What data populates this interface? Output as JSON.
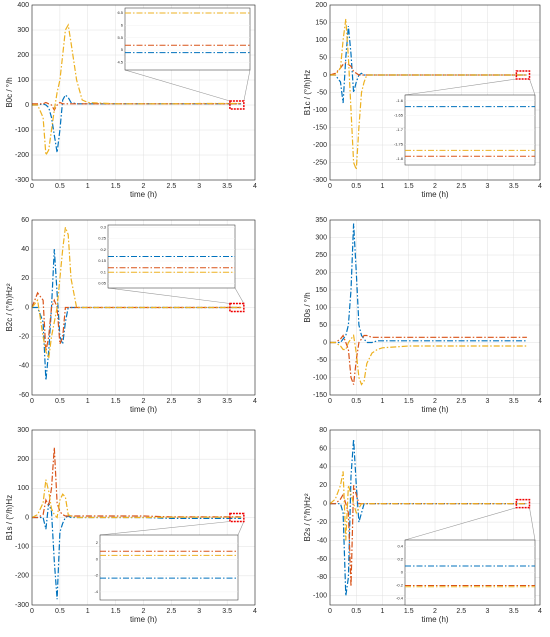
{
  "chart_data": [
    {
      "type": "line",
      "ylabel": "B0c / °/h",
      "xlabel": "time (h)",
      "x": [
        0,
        0.1,
        0.2,
        0.25,
        0.3,
        0.35,
        0.4,
        0.45,
        0.5,
        0.55,
        0.6,
        0.65,
        0.7,
        0.8,
        0.9,
        1,
        1.5,
        2,
        2.5,
        3,
        3.5,
        3.75
      ],
      "xlim": [
        0,
        4
      ],
      "xticks": [
        0,
        0.5,
        1,
        1.5,
        2,
        2.5,
        3,
        3.5,
        4
      ],
      "ylim": [
        -300,
        400
      ],
      "yticks": [
        -300,
        -200,
        -100,
        0,
        100,
        200,
        300,
        400
      ],
      "grid": true,
      "series": [
        {
          "color": "#0072bd",
          "values": [
            0,
            0,
            5,
            0,
            -10,
            -50,
            -120,
            -190,
            -100,
            20,
            40,
            30,
            10,
            5,
            5,
            5,
            5,
            5,
            5,
            5,
            5,
            5
          ]
        },
        {
          "color": "#d95319",
          "values": [
            5,
            5,
            5,
            10,
            5,
            0,
            -20,
            0,
            10,
            5,
            5,
            5,
            5,
            5,
            5,
            5,
            5,
            5,
            5,
            5,
            5,
            5
          ]
        },
        {
          "color": "#edb120",
          "values": [
            0,
            0,
            -50,
            -200,
            -180,
            -100,
            -20,
            50,
            100,
            200,
            300,
            320,
            250,
            100,
            20,
            10,
            5,
            5,
            5,
            6,
            6,
            6
          ]
        }
      ],
      "inset": {
        "ylim": [
          4.2,
          6.7
        ],
        "yticks": [
          4.5,
          5,
          5.5,
          6,
          6.5
        ],
        "values": [
          4.9,
          5.2,
          6.5
        ]
      }
    },
    {
      "type": "line",
      "ylabel": "B1c / (°/h)Hz",
      "xlabel": "time (h)",
      "x": [
        0,
        0.1,
        0.2,
        0.25,
        0.3,
        0.35,
        0.4,
        0.45,
        0.5,
        0.55,
        0.6,
        0.65,
        0.7,
        0.8,
        0.9,
        1,
        1.5,
        2,
        2.5,
        3,
        3.5,
        3.75
      ],
      "xlim": [
        0,
        4
      ],
      "xticks": [
        0,
        0.5,
        1,
        1.5,
        2,
        2.5,
        3,
        3.5,
        4
      ],
      "ylim": [
        -300,
        200
      ],
      "yticks": [
        -300,
        -250,
        -200,
        -150,
        -100,
        -50,
        0,
        50,
        100,
        150,
        200
      ],
      "grid": true,
      "series": [
        {
          "color": "#0072bd",
          "values": [
            0,
            0,
            -20,
            -80,
            50,
            140,
            60,
            -50,
            -20,
            0,
            5,
            0,
            0,
            0,
            0,
            0,
            0,
            0,
            0,
            0,
            0,
            0
          ]
        },
        {
          "color": "#d95319",
          "values": [
            0,
            5,
            20,
            30,
            35,
            30,
            25,
            10,
            5,
            0,
            0,
            0,
            0,
            0,
            0,
            0,
            0,
            0,
            0,
            0,
            0,
            0
          ]
        },
        {
          "color": "#edb120",
          "values": [
            0,
            0,
            20,
            100,
            160,
            50,
            -100,
            -250,
            -270,
            -150,
            -50,
            -20,
            0,
            0,
            0,
            0,
            0,
            0,
            0,
            0,
            0,
            0
          ]
        }
      ],
      "inset": {
        "ylim": [
          -1.82,
          -1.58
        ],
        "yticks": [
          -1.8,
          -1.75,
          -1.7,
          -1.65,
          -1.6
        ],
        "values": [
          -1.62,
          -1.79,
          -1.77
        ]
      }
    },
    {
      "type": "line",
      "ylabel": "B2c / (°/h)Hz²",
      "xlabel": "time (h)",
      "x": [
        0,
        0.1,
        0.2,
        0.25,
        0.3,
        0.35,
        0.4,
        0.45,
        0.5,
        0.55,
        0.6,
        0.65,
        0.7,
        0.8,
        0.9,
        1,
        1.5,
        2,
        2.5,
        3,
        3.5,
        3.75
      ],
      "xlim": [
        0,
        4
      ],
      "xticks": [
        0,
        0.5,
        1,
        1.5,
        2,
        2.5,
        3,
        3.5,
        4
      ],
      "ylim": [
        -60,
        60
      ],
      "yticks": [
        -60,
        -40,
        -20,
        0,
        20,
        40,
        60
      ],
      "grid": true,
      "series": [
        {
          "color": "#0072bd",
          "values": [
            0,
            0,
            -10,
            -50,
            -30,
            0,
            40,
            10,
            -20,
            -25,
            -10,
            0,
            0,
            0,
            0,
            0,
            0,
            0,
            0,
            0,
            0,
            0
          ]
        },
        {
          "color": "#d95319",
          "values": [
            0,
            10,
            5,
            -30,
            -20,
            0,
            5,
            0,
            -25,
            -20,
            0,
            0,
            0,
            0,
            0,
            0,
            0,
            0,
            0,
            0,
            0,
            0
          ]
        },
        {
          "color": "#edb120",
          "values": [
            0,
            5,
            -20,
            -30,
            -35,
            -20,
            -10,
            0,
            20,
            40,
            55,
            50,
            20,
            0,
            0,
            0,
            0,
            0,
            0,
            0,
            0,
            0
          ]
        }
      ],
      "inset": {
        "ylim": [
          0.03,
          0.31
        ],
        "yticks": [
          0.05,
          0.1,
          0.15,
          0.2,
          0.25,
          0.3
        ],
        "values": [
          0.17,
          0.12,
          0.1
        ]
      }
    },
    {
      "type": "line",
      "ylabel": "B0s / °/h",
      "xlabel": "time (h)",
      "x": [
        0,
        0.1,
        0.2,
        0.25,
        0.3,
        0.35,
        0.4,
        0.45,
        0.5,
        0.55,
        0.6,
        0.65,
        0.7,
        0.8,
        0.9,
        1,
        1.5,
        2,
        2.5,
        3,
        3.5,
        3.75
      ],
      "xlim": [
        0,
        4
      ],
      "xticks": [
        0,
        0.5,
        1,
        1.5,
        2,
        2.5,
        3,
        3.5,
        4
      ],
      "ylim": [
        -150,
        350
      ],
      "yticks": [
        -150,
        -100,
        -50,
        0,
        50,
        100,
        150,
        200,
        250,
        300,
        350
      ],
      "grid": true,
      "series": [
        {
          "color": "#0072bd",
          "values": [
            0,
            0,
            0,
            10,
            20,
            50,
            150,
            340,
            200,
            50,
            20,
            10,
            0,
            0,
            5,
            5,
            5,
            5,
            5,
            5,
            5,
            5
          ]
        },
        {
          "color": "#d95319",
          "values": [
            0,
            0,
            10,
            20,
            0,
            -20,
            -100,
            -120,
            -50,
            0,
            10,
            20,
            20,
            15,
            15,
            15,
            15,
            15,
            15,
            15,
            15,
            15
          ]
        },
        {
          "color": "#edb120",
          "values": [
            0,
            0,
            -10,
            -20,
            -20,
            0,
            10,
            20,
            -30,
            -100,
            -120,
            -110,
            -60,
            -30,
            -20,
            -15,
            -10,
            -10,
            -10,
            -10,
            -10,
            -10
          ]
        }
      ]
    },
    {
      "type": "line",
      "ylabel": "B1s / (°/h)Hz",
      "xlabel": "time (h)",
      "x": [
        0,
        0.1,
        0.2,
        0.25,
        0.3,
        0.35,
        0.4,
        0.45,
        0.5,
        0.55,
        0.6,
        0.65,
        0.7,
        0.8,
        0.9,
        1,
        1.5,
        2,
        2.5,
        3,
        3.5,
        3.75
      ],
      "xlim": [
        0,
        4
      ],
      "xticks": [
        0,
        0.5,
        1,
        1.5,
        2,
        2.5,
        3,
        3.5,
        4
      ],
      "ylim": [
        -300,
        300
      ],
      "yticks": [
        -300,
        -200,
        -100,
        0,
        100,
        200,
        300
      ],
      "grid": true,
      "series": [
        {
          "color": "#0072bd",
          "values": [
            0,
            0,
            0,
            -40,
            50,
            20,
            -150,
            -280,
            -50,
            -20,
            0,
            5,
            0,
            0,
            0,
            0,
            0,
            0,
            -3,
            -3,
            -3,
            -3
          ]
        },
        {
          "color": "#d95319",
          "values": [
            0,
            0,
            10,
            60,
            40,
            100,
            240,
            50,
            20,
            10,
            5,
            5,
            5,
            5,
            5,
            5,
            5,
            5,
            2,
            2,
            2,
            2
          ]
        },
        {
          "color": "#edb120",
          "values": [
            0,
            10,
            50,
            130,
            90,
            30,
            10,
            0,
            60,
            80,
            70,
            10,
            5,
            0,
            0,
            0,
            0,
            0,
            1,
            1,
            1,
            1
          ]
        }
      ],
      "inset": {
        "ylim": [
          -5,
          3
        ],
        "yticks": [
          -4,
          -2,
          0,
          2
        ],
        "values": [
          -2.3,
          1,
          0.5
        ]
      }
    },
    {
      "type": "line",
      "ylabel": "B2s / (°/h)Hz²",
      "xlabel": "time (h)",
      "x": [
        0,
        0.1,
        0.2,
        0.25,
        0.3,
        0.35,
        0.4,
        0.45,
        0.5,
        0.55,
        0.6,
        0.65,
        0.7,
        0.8,
        0.9,
        1,
        1.5,
        2,
        2.5,
        3,
        3.5,
        3.75
      ],
      "xlim": [
        0,
        4
      ],
      "xticks": [
        0,
        0.5,
        1,
        1.5,
        2,
        2.5,
        3,
        3.5,
        4
      ],
      "ylim": [
        -110,
        80
      ],
      "yticks": [
        -100,
        -80,
        -60,
        -40,
        -20,
        0,
        20,
        40,
        60,
        80
      ],
      "grid": true,
      "series": [
        {
          "color": "#0072bd",
          "values": [
            0,
            0,
            0,
            -10,
            -100,
            -80,
            30,
            70,
            20,
            -20,
            -10,
            0,
            0,
            0,
            0,
            0,
            0,
            0,
            0,
            0,
            0,
            0
          ]
        },
        {
          "color": "#d95319",
          "values": [
            0,
            0,
            5,
            10,
            0,
            -10,
            -90,
            20,
            10,
            0,
            0,
            0,
            0,
            0,
            0,
            0,
            0,
            0,
            0,
            0,
            0,
            0
          ]
        },
        {
          "color": "#edb120",
          "values": [
            0,
            5,
            20,
            35,
            -40,
            20,
            10,
            0,
            -10,
            -5,
            0,
            0,
            0,
            0,
            0,
            0,
            0,
            0,
            0,
            0,
            0,
            0
          ]
        }
      ],
      "inset": {
        "ylim": [
          -0.5,
          0.5
        ],
        "yticks": [
          -0.4,
          -0.2,
          0,
          0.2,
          0.4
        ],
        "values": [
          0.1,
          -0.2,
          -0.22
        ]
      }
    }
  ]
}
